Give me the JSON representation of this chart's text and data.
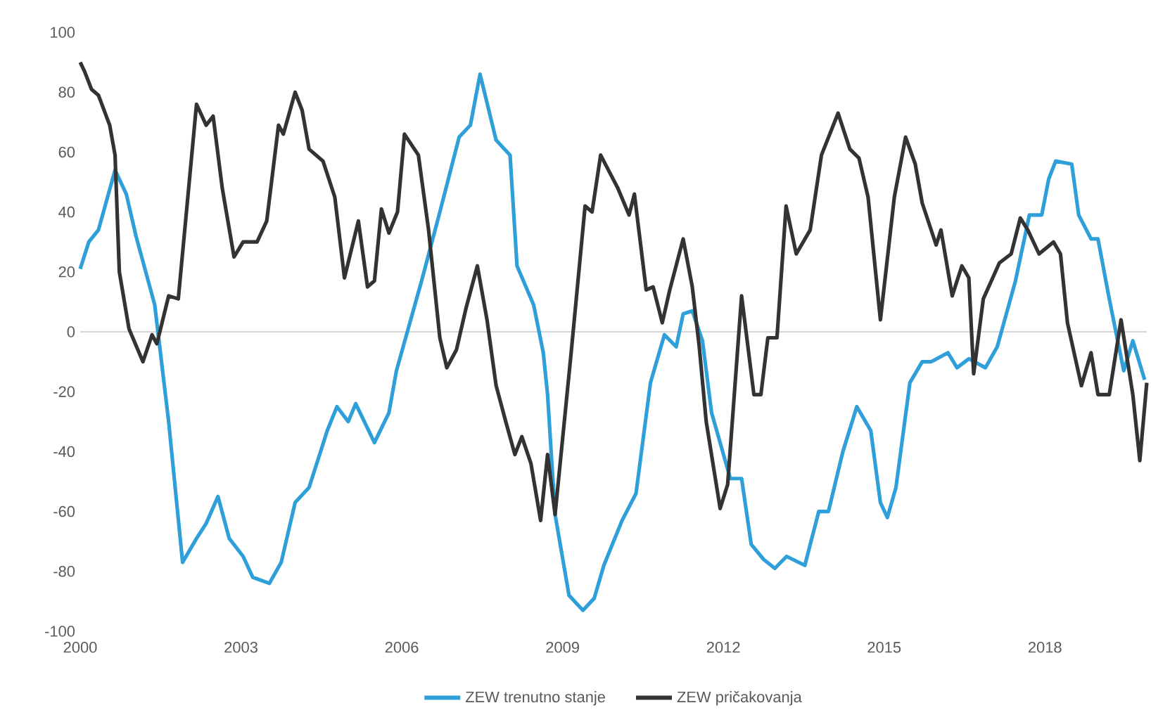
{
  "chart_data": {
    "type": "line",
    "xlim": [
      2000,
      2019.9
    ],
    "ylim": [
      -100,
      100
    ],
    "xticks": [
      2000,
      2003,
      2006,
      2009,
      2012,
      2015,
      2018
    ],
    "yticks": [
      -100,
      -80,
      -60,
      -40,
      -20,
      0,
      20,
      40,
      60,
      80,
      100
    ],
    "grid": false,
    "legend": "bottom",
    "marker": "none",
    "line_style": "solid",
    "ref_lines": [
      {
        "axis": "y",
        "value": 0,
        "color": "#c8c8c8"
      }
    ],
    "series": [
      {
        "name": "ZEW trenutno stanje",
        "color": "#2e9fd8",
        "x": [
          2000.0,
          2000.16,
          2000.34,
          2000.65,
          2000.86,
          2001.04,
          2001.39,
          2001.65,
          2001.91,
          2002.17,
          2002.35,
          2002.57,
          2002.78,
          2003.04,
          2003.22,
          2003.53,
          2003.75,
          2004.01,
          2004.27,
          2004.61,
          2004.79,
          2005.0,
          2005.14,
          2005.49,
          2005.76,
          2005.9,
          2006.37,
          2006.71,
          2007.07,
          2007.28,
          2007.46,
          2007.76,
          2008.02,
          2008.15,
          2008.46,
          2008.64,
          2008.72,
          2008.86,
          2009.12,
          2009.38,
          2009.59,
          2009.77,
          2010.11,
          2010.37,
          2010.64,
          2010.9,
          2011.12,
          2011.25,
          2011.42,
          2011.61,
          2011.78,
          2012.13,
          2012.34,
          2012.52,
          2012.75,
          2012.96,
          2013.18,
          2013.52,
          2013.78,
          2013.96,
          2014.23,
          2014.49,
          2014.75,
          2014.93,
          2015.06,
          2015.22,
          2015.48,
          2015.71,
          2015.88,
          2016.19,
          2016.36,
          2016.58,
          2016.89,
          2017.11,
          2017.45,
          2017.71,
          2017.94,
          2018.07,
          2018.2,
          2018.5,
          2018.63,
          2018.86,
          2018.99,
          2019.2,
          2019.47,
          2019.64,
          2019.86
        ],
        "values": [
          21,
          30,
          34,
          54,
          46,
          32,
          9,
          -30,
          -77,
          -69,
          -64,
          -55,
          -69,
          -75,
          -82,
          -84,
          -77,
          -57,
          -52,
          -33,
          -25,
          -30,
          -24,
          -37,
          -27,
          -13,
          17,
          40,
          65,
          69,
          86,
          64,
          59,
          22,
          9,
          -7,
          -21,
          -61,
          -88,
          -93,
          -89,
          -78,
          -63,
          -54,
          -17,
          -1,
          -5,
          6,
          7,
          -3,
          -27,
          -49,
          -49,
          -71,
          -76,
          -79,
          -75,
          -78,
          -60,
          -60,
          -40,
          -25,
          -33,
          -57,
          -62,
          -52,
          -17,
          -10,
          -10,
          -7,
          -12,
          -9,
          -12,
          -5,
          17,
          39,
          39,
          51,
          57,
          56,
          39,
          31,
          31,
          11,
          -13,
          -3,
          -16
        ]
      },
      {
        "name": "ZEW pričakovanja",
        "color": "#333333",
        "x": [
          2000.0,
          2000.08,
          2000.21,
          2000.34,
          2000.55,
          2000.65,
          2000.73,
          2000.91,
          2001.17,
          2001.34,
          2001.43,
          2001.65,
          2001.83,
          2002.17,
          2002.35,
          2002.48,
          2002.65,
          2002.87,
          2003.04,
          2003.3,
          2003.48,
          2003.7,
          2003.79,
          2004.01,
          2004.14,
          2004.27,
          2004.53,
          2004.75,
          2004.93,
          2005.19,
          2005.36,
          2005.49,
          2005.62,
          2005.76,
          2005.92,
          2006.05,
          2006.31,
          2006.5,
          2006.71,
          2006.84,
          2007.02,
          2007.2,
          2007.41,
          2007.59,
          2007.76,
          2007.94,
          2008.11,
          2008.24,
          2008.41,
          2008.59,
          2008.72,
          2008.86,
          2009.16,
          2009.42,
          2009.55,
          2009.71,
          2010.03,
          2010.24,
          2010.34,
          2010.56,
          2010.69,
          2010.86,
          2011.0,
          2011.25,
          2011.42,
          2011.55,
          2011.68,
          2011.94,
          2012.08,
          2012.34,
          2012.57,
          2012.7,
          2012.83,
          2013.0,
          2013.17,
          2013.36,
          2013.62,
          2013.83,
          2014.14,
          2014.36,
          2014.53,
          2014.7,
          2014.93,
          2015.19,
          2015.4,
          2015.58,
          2015.71,
          2015.97,
          2016.06,
          2016.27,
          2016.45,
          2016.58,
          2016.67,
          2016.85,
          2017.15,
          2017.37,
          2017.54,
          2017.68,
          2017.89,
          2018.16,
          2018.29,
          2018.42,
          2018.68,
          2018.86,
          2018.99,
          2019.2,
          2019.42,
          2019.64,
          2019.77,
          2019.9
        ],
        "values": [
          90,
          87,
          81,
          79,
          69,
          59,
          20,
          1,
          -10,
          -1,
          -4,
          12,
          11,
          76,
          69,
          72,
          48,
          25,
          30,
          30,
          37,
          69,
          66,
          80,
          74,
          61,
          57,
          45,
          18,
          37,
          15,
          17,
          41,
          33,
          40,
          66,
          59,
          34,
          -2,
          -12,
          -6,
          8,
          22,
          4,
          -18,
          -30,
          -41,
          -35,
          -44,
          -63,
          -41,
          -61,
          -7,
          42,
          40,
          59,
          48,
          39,
          46,
          14,
          15,
          3,
          14,
          31,
          15,
          -5,
          -30,
          -59,
          -51,
          12,
          -21,
          -21,
          -2,
          -2,
          42,
          26,
          34,
          59,
          73,
          61,
          58,
          45,
          4,
          45,
          65,
          56,
          43,
          29,
          34,
          12,
          22,
          18,
          -14,
          11,
          23,
          26,
          38,
          34,
          26,
          30,
          26,
          3,
          -18,
          -7,
          -21,
          -21,
          4,
          -21,
          -43,
          -17
        ]
      }
    ]
  }
}
